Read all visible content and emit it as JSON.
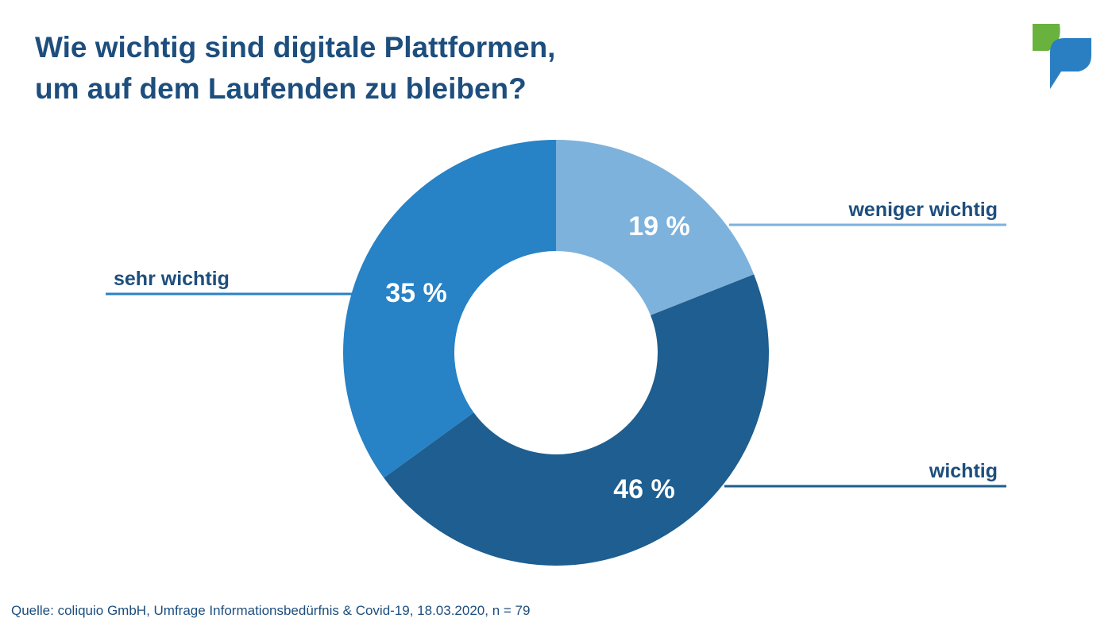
{
  "title_line1": "Wie wichtig sind digitale Plattformen,",
  "title_line2": "um auf dem Laufenden zu bleiben?",
  "source": "Quelle: coliquio GmbH, Umfrage Informationsbedürfnis & Covid-19, 18.03.2020, n = 79",
  "colors": {
    "title": "#1d4e7d",
    "logo_green": "#6ab23e",
    "logo_blue": "#2a7fc3"
  },
  "chart_data": {
    "type": "pie",
    "style": "donut",
    "categories": [
      "weniger wichtig",
      "wichtig",
      "sehr wichtig"
    ],
    "values": [
      19,
      46,
      35
    ],
    "value_labels": [
      "19 %",
      "46 %",
      "35 %"
    ],
    "colors": [
      "#7db2dc",
      "#1e5e90",
      "#2782c6"
    ],
    "start": "12 o'clock, clockwise"
  }
}
